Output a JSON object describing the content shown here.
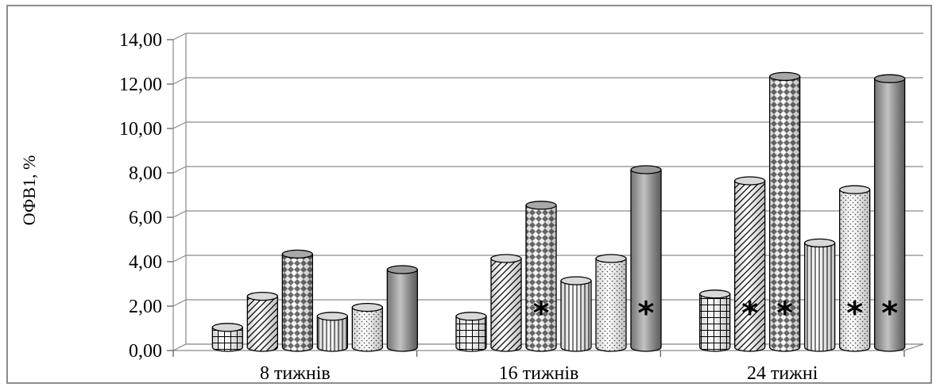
{
  "chart_data": {
    "type": "bar",
    "categories": [
      "8 тижнів",
      "16 тижнів",
      "24 тижні"
    ],
    "ylabel": "ОФВ1, %",
    "ylim": [
      0,
      14
    ],
    "ytick_step": 2,
    "ytick_labels": [
      "0,00",
      "2,00",
      "4,00",
      "6,00",
      "8,00",
      "10,00",
      "12,00",
      "14,00"
    ],
    "grid": true,
    "legend": "none",
    "series": [
      {
        "values": [
          0.9,
          1.4,
          2.4
        ],
        "pattern": "grid",
        "color": "#ffffff"
      },
      {
        "values": [
          2.3,
          4.0,
          7.5
        ],
        "pattern": "diagonal",
        "color": "#ffffff"
      },
      {
        "values": [
          4.2,
          6.4,
          12.2
        ],
        "pattern": "diamond",
        "color": "#b0b0b0"
      },
      {
        "values": [
          1.4,
          3.0,
          4.7
        ],
        "pattern": "vertical",
        "color": "#ffffff"
      },
      {
        "values": [
          1.8,
          4.0,
          7.1
        ],
        "pattern": "dots",
        "color": "#ffffff"
      },
      {
        "values": [
          3.5,
          8.0,
          12.1
        ],
        "pattern": "solid",
        "color": "#a6a6a6"
      }
    ],
    "annotations": [
      {
        "text": "*",
        "category": 1,
        "series": 2
      },
      {
        "text": "*",
        "category": 1,
        "series": 5
      },
      {
        "text": "*",
        "category": 2,
        "series": 1
      },
      {
        "text": "*",
        "category": 2,
        "series": 2
      },
      {
        "text": "*",
        "category": 2,
        "series": 4
      },
      {
        "text": "*",
        "category": 2,
        "series": 5
      }
    ]
  }
}
